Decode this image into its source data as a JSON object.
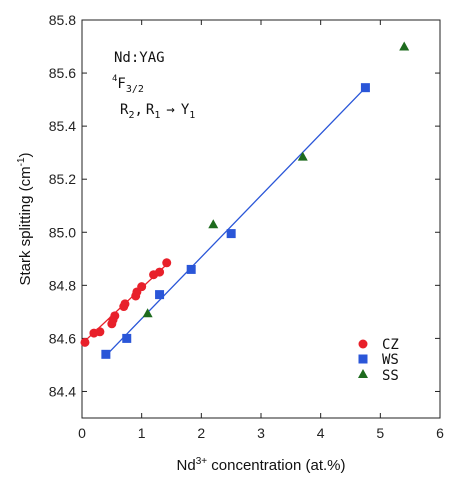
{
  "chart_data": {
    "type": "scatter",
    "xlabel": "Nd3+ concentration (at.%)",
    "ylabel": "Stark splitting (cm-1)",
    "xlim": [
      0,
      6
    ],
    "ylim": [
      84.3,
      85.8
    ],
    "xticks": [
      "0",
      "1",
      "2",
      "3",
      "4",
      "5",
      "6"
    ],
    "yticks": [
      "84.4",
      "84.6",
      "84.8",
      "85.0",
      "85.2",
      "85.4",
      "85.6",
      "85.8"
    ],
    "annotations": {
      "line1": "Nd:YAG",
      "line2_base": "F",
      "line2_sup": "4",
      "line2_sub": "3/2",
      "line3_main": "R",
      "line3_sub1": "2",
      "line3_sep": ",",
      "line3_sub2": "1",
      "line3_arrow": "→",
      "line3_target": "Y",
      "line3_target_sub": "1"
    },
    "legend_position": "lower-right",
    "series": [
      {
        "name": "CZ",
        "marker": "circle",
        "color": "#e8202a",
        "points": [
          [
            0.05,
            84.585
          ],
          [
            0.2,
            84.62
          ],
          [
            0.3,
            84.625
          ],
          [
            0.5,
            84.655
          ],
          [
            0.52,
            84.67
          ],
          [
            0.55,
            84.685
          ],
          [
            0.7,
            84.72
          ],
          [
            0.72,
            84.73
          ],
          [
            0.9,
            84.76
          ],
          [
            0.92,
            84.775
          ],
          [
            1.0,
            84.795
          ],
          [
            1.2,
            84.84
          ],
          [
            1.3,
            84.85
          ],
          [
            1.42,
            84.885
          ]
        ],
        "fit": [
          [
            0.0,
            84.58
          ],
          [
            1.45,
            84.885
          ]
        ]
      },
      {
        "name": "WS",
        "marker": "square",
        "color": "#2a56d8",
        "points": [
          [
            0.4,
            84.54
          ],
          [
            0.75,
            84.6
          ],
          [
            1.3,
            84.765
          ],
          [
            1.83,
            84.86
          ],
          [
            2.5,
            84.995
          ],
          [
            4.75,
            85.545
          ]
        ],
        "fit": [
          [
            0.4,
            84.535
          ],
          [
            4.75,
            85.545
          ]
        ]
      },
      {
        "name": "SS",
        "marker": "triangle",
        "color": "#1e6b1e",
        "points": [
          [
            1.1,
            84.695
          ],
          [
            2.2,
            85.03
          ],
          [
            3.7,
            85.285
          ],
          [
            5.4,
            85.7
          ]
        ]
      }
    ]
  },
  "axis_label_parts": {
    "x_main": "Nd",
    "x_sup": "3+",
    "x_rest": " concentration (at.%)",
    "y_main": "Stark splitting (cm",
    "y_sup": "-1",
    "y_rest": ")"
  }
}
